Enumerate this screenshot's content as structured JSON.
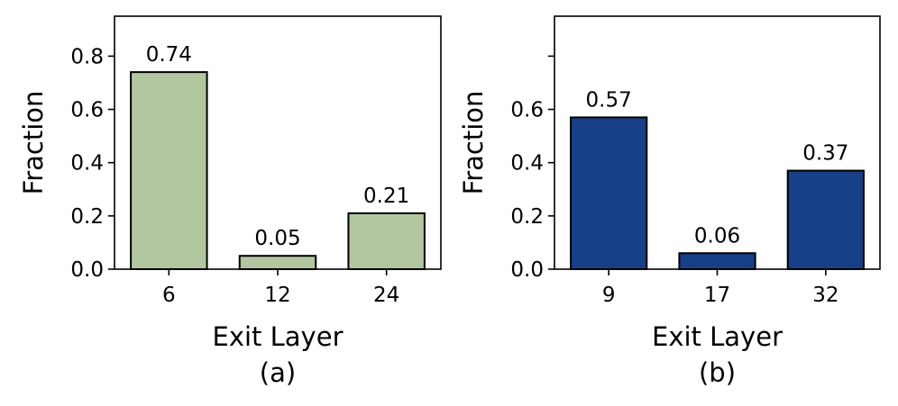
{
  "chart_data": [
    {
      "type": "bar",
      "id": "a",
      "subplot_label": "(a)",
      "categories": [
        "6",
        "12",
        "24"
      ],
      "values": [
        0.74,
        0.05,
        0.21
      ],
      "data_labels": [
        "0.74",
        "0.05",
        "0.21"
      ],
      "xlabel": "Exit Layer",
      "ylabel": "Fraction",
      "ylim": [
        0,
        0.95
      ],
      "yticks": [
        0.0,
        0.2,
        0.4,
        0.6,
        0.8
      ],
      "ytick_labels": [
        "0.0",
        "0.2",
        "0.4",
        "0.6",
        "0.8"
      ],
      "bar_color": "#b2c6a0",
      "edge_color": "#000000",
      "grid": false
    },
    {
      "type": "bar",
      "id": "b",
      "subplot_label": "(b)",
      "categories": [
        "9",
        "17",
        "32"
      ],
      "values": [
        0.57,
        0.06,
        0.37
      ],
      "data_labels": [
        "0.57",
        "0.06",
        "0.37"
      ],
      "xlabel": "Exit Layer",
      "ylabel": "Fraction",
      "ylim": [
        0,
        0.95
      ],
      "yticks": [
        0.0,
        0.2,
        0.4,
        0.6,
        0.8
      ],
      "ytick_labels": [
        "0.0",
        "0.2",
        "0.4",
        "0.6",
        ""
      ],
      "bar_color": "#163f87",
      "edge_color": "#000000",
      "grid": false
    }
  ]
}
